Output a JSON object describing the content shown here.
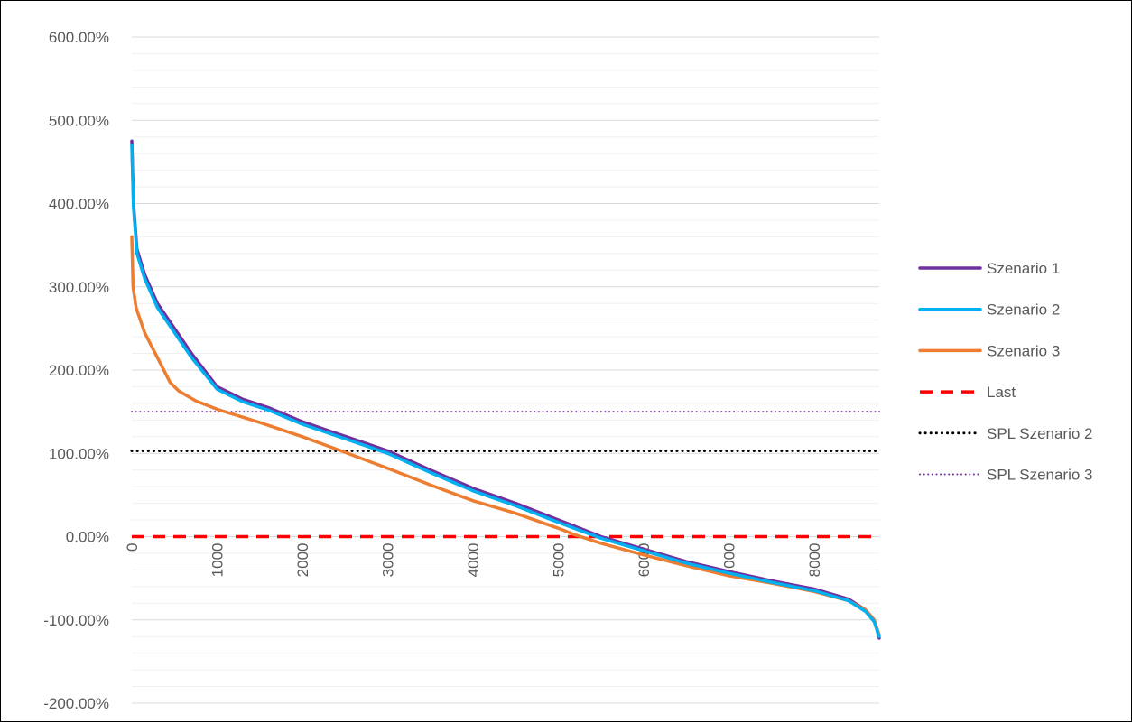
{
  "chart_data": {
    "type": "line",
    "title": "",
    "xlabel": "",
    "ylabel": "",
    "xlim": [
      0,
      8760
    ],
    "ylim": [
      -200,
      600
    ],
    "y_major_step": 100,
    "y_minor_step": 20,
    "y_tick_labels": [
      "600.00%",
      "500.00%",
      "400.00%",
      "300.00%",
      "200.00%",
      "100.00%",
      "0.00%",
      "-100.00%",
      "-200.00%"
    ],
    "y_tick_values": [
      600,
      500,
      400,
      300,
      200,
      100,
      0,
      -100,
      -200
    ],
    "x_tick_labels": [
      "0",
      "1000",
      "2000",
      "3000",
      "4000",
      "5000",
      "6000",
      "7000",
      "8000"
    ],
    "x_tick_values": [
      0,
      1000,
      2000,
      3000,
      4000,
      5000,
      6000,
      7000,
      8000
    ],
    "x_axis_crosses_at": 0,
    "gridlines": true,
    "legend_position": "right",
    "series": [
      {
        "name": "Szenario 1",
        "color": "#7030A0",
        "style": "solid",
        "points": [
          [
            0,
            475
          ],
          [
            20,
            400
          ],
          [
            60,
            345
          ],
          [
            150,
            315
          ],
          [
            300,
            280
          ],
          [
            500,
            250
          ],
          [
            700,
            220
          ],
          [
            1000,
            180
          ],
          [
            1300,
            165
          ],
          [
            1600,
            155
          ],
          [
            2000,
            138
          ],
          [
            2400,
            124
          ],
          [
            2800,
            110
          ],
          [
            3000,
            103
          ],
          [
            3500,
            80
          ],
          [
            4000,
            58
          ],
          [
            4500,
            40
          ],
          [
            5000,
            20
          ],
          [
            5500,
            0
          ],
          [
            6000,
            -15
          ],
          [
            6500,
            -30
          ],
          [
            7000,
            -42
          ],
          [
            7500,
            -53
          ],
          [
            8000,
            -63
          ],
          [
            8400,
            -75
          ],
          [
            8600,
            -88
          ],
          [
            8700,
            -100
          ],
          [
            8760,
            -122
          ]
        ]
      },
      {
        "name": "Szenario 2",
        "color": "#00B0F0",
        "style": "solid",
        "points": [
          [
            0,
            470
          ],
          [
            20,
            395
          ],
          [
            60,
            340
          ],
          [
            150,
            310
          ],
          [
            300,
            275
          ],
          [
            500,
            245
          ],
          [
            700,
            215
          ],
          [
            1000,
            177
          ],
          [
            1300,
            162
          ],
          [
            1600,
            152
          ],
          [
            2000,
            135
          ],
          [
            2400,
            121
          ],
          [
            2800,
            107
          ],
          [
            3000,
            100
          ],
          [
            3500,
            77
          ],
          [
            4000,
            55
          ],
          [
            4500,
            37
          ],
          [
            5000,
            17
          ],
          [
            5500,
            -2
          ],
          [
            6000,
            -17
          ],
          [
            6500,
            -32
          ],
          [
            7000,
            -44
          ],
          [
            7500,
            -55
          ],
          [
            8000,
            -65
          ],
          [
            8400,
            -77
          ],
          [
            8600,
            -90
          ],
          [
            8700,
            -102
          ],
          [
            8760,
            -120
          ]
        ]
      },
      {
        "name": "Szenario 3",
        "color": "#ED7D31",
        "style": "solid",
        "points": [
          [
            0,
            360
          ],
          [
            15,
            300
          ],
          [
            50,
            275
          ],
          [
            150,
            245
          ],
          [
            300,
            215
          ],
          [
            450,
            185
          ],
          [
            550,
            175
          ],
          [
            750,
            163
          ],
          [
            1000,
            153
          ],
          [
            1500,
            137
          ],
          [
            2000,
            120
          ],
          [
            2400,
            105
          ],
          [
            3000,
            82
          ],
          [
            3500,
            62
          ],
          [
            4000,
            43
          ],
          [
            4500,
            28
          ],
          [
            5000,
            10
          ],
          [
            5200,
            2
          ],
          [
            5500,
            -8
          ],
          [
            6000,
            -22
          ],
          [
            6500,
            -35
          ],
          [
            7000,
            -47
          ],
          [
            7500,
            -56
          ],
          [
            8000,
            -66
          ],
          [
            8400,
            -77
          ],
          [
            8600,
            -88
          ],
          [
            8700,
            -100
          ],
          [
            8760,
            -118
          ]
        ]
      },
      {
        "name": "Last",
        "color": "#FF0000",
        "style": "dashed",
        "points": [
          [
            0,
            0
          ],
          [
            8760,
            0
          ]
        ]
      },
      {
        "name": "SPL Szenario 2",
        "color": "#000000",
        "style": "dotted",
        "points": [
          [
            0,
            103
          ],
          [
            8760,
            103
          ]
        ]
      },
      {
        "name": "SPL Szenario 3",
        "color": "#7030A0",
        "style": "dotted-fine",
        "points": [
          [
            0,
            150
          ],
          [
            8760,
            150
          ]
        ]
      }
    ]
  }
}
